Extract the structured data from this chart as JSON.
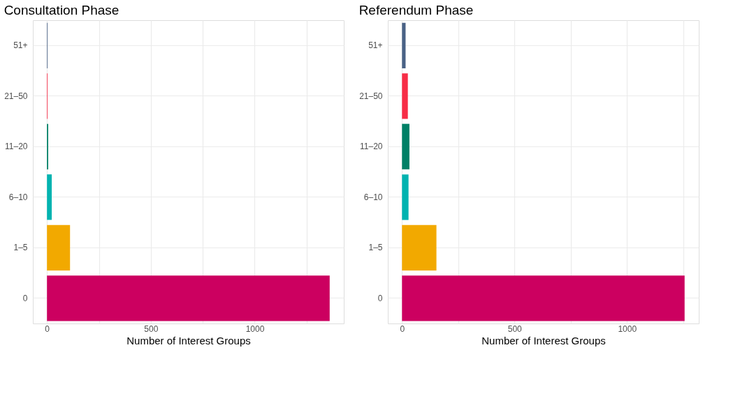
{
  "chart_data": [
    {
      "type": "bar",
      "orientation": "horizontal",
      "title": "Consultation Phase",
      "xlabel": "Number of Interest Groups",
      "categories": [
        "51+",
        "21–50",
        "11–20",
        "6–10",
        "1–5",
        "0"
      ],
      "values": [
        3,
        3,
        6,
        23,
        111,
        1361
      ],
      "colors": [
        "#4a6286",
        "#f72d47",
        "#008066",
        "#00b3b0",
        "#f2a900",
        "#cc0060"
      ],
      "xlim": [
        -68,
        1429
      ],
      "xticks": [
        0,
        {
          "value": 250,
          "label": null
        },
        500,
        {
          "value": 750,
          "label": null
        },
        1000,
        {
          "value": 1250,
          "label": null
        }
      ],
      "grid": true,
      "legend": false
    },
    {
      "type": "bar",
      "orientation": "horizontal",
      "title": "Referendum Phase",
      "xlabel": "Number of Interest Groups",
      "categories": [
        "51+",
        "21–50",
        "11–20",
        "6–10",
        "1–5",
        "0"
      ],
      "values": [
        16,
        26,
        33,
        29,
        153,
        1256
      ],
      "colors": [
        "#4a6286",
        "#f72d47",
        "#008066",
        "#00b3b0",
        "#f2a900",
        "#cc0060"
      ],
      "xlim": [
        -63,
        1319
      ],
      "xticks": [
        0,
        {
          "value": 250,
          "label": null
        },
        500,
        {
          "value": 750,
          "label": null
        },
        1000,
        {
          "value": 1250,
          "label": null
        }
      ],
      "grid": true,
      "legend": false
    }
  ]
}
